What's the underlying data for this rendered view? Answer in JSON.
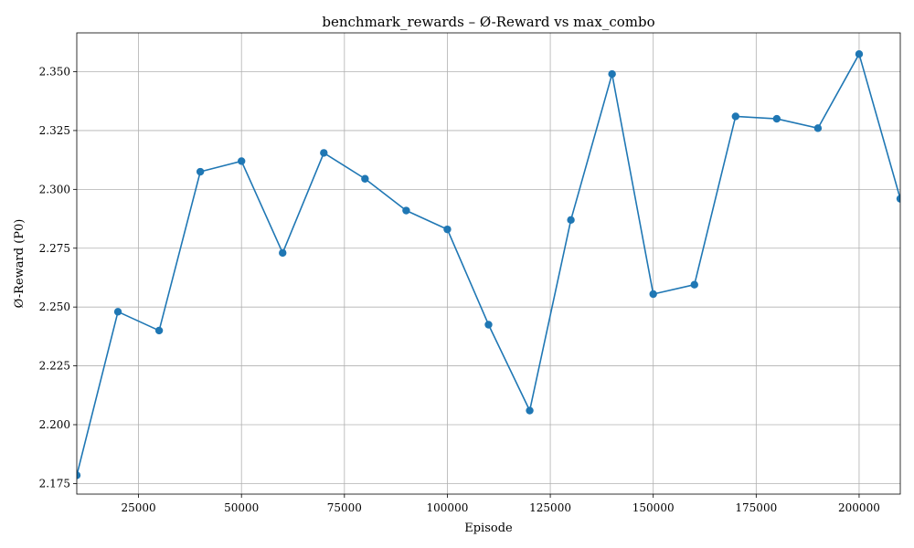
{
  "chart_data": {
    "type": "line",
    "title": "benchmark_rewards – Ø-Reward vs max_combo",
    "xlabel": "Episode",
    "ylabel": "Ø-Reward (P0)",
    "xlim": [
      10000,
      210000
    ],
    "ylim": [
      2.1705,
      2.3665
    ],
    "xticks": [
      25000,
      50000,
      75000,
      100000,
      125000,
      150000,
      175000,
      200000
    ],
    "xtick_labels": [
      "25000",
      "50000",
      "75000",
      "100000",
      "125000",
      "150000",
      "175000",
      "200000"
    ],
    "yticks": [
      2.175,
      2.2,
      2.225,
      2.25,
      2.275,
      2.3,
      2.325,
      2.35
    ],
    "ytick_labels": [
      "2.175",
      "2.200",
      "2.225",
      "2.250",
      "2.275",
      "2.300",
      "2.325",
      "2.350"
    ],
    "grid": true,
    "colors": {
      "line": "#1f77b4"
    },
    "series": [
      {
        "x": [
          10000,
          20000,
          30000,
          40000,
          50000,
          60000,
          70000,
          80000,
          90000,
          100000,
          110000,
          120000,
          130000,
          140000,
          150000,
          160000,
          170000,
          180000,
          190000,
          200000,
          210000
        ],
        "y": [
          2.1785,
          2.248,
          2.24,
          2.3075,
          2.312,
          2.273,
          2.3155,
          2.3045,
          2.291,
          2.283,
          2.2425,
          2.206,
          2.287,
          2.349,
          2.2555,
          2.2595,
          2.331,
          2.33,
          2.326,
          2.3575,
          2.296
        ]
      }
    ]
  }
}
